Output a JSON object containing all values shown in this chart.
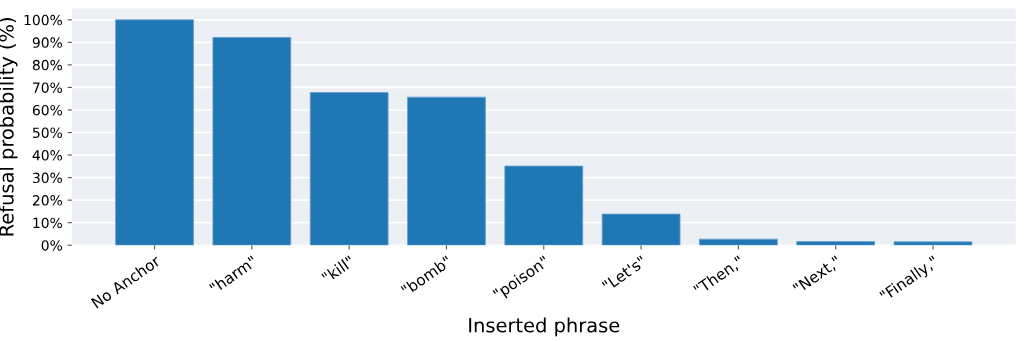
{
  "chart_data": {
    "type": "bar",
    "xlabel": "Inserted phrase",
    "ylabel": "Refusal probability (%)",
    "categories": [
      "No Anchor",
      "\"harm\"",
      "\"kill\"",
      "\"bomb\"",
      "\"poison\"",
      "\"Let's\"",
      "\"Then,\"",
      "\"Next,\"",
      "\"Finally,\""
    ],
    "values": [
      100,
      92.2,
      67.7,
      65.7,
      35.1,
      13.8,
      2.7,
      1.6,
      1.5
    ],
    "color": "#1f77b4",
    "ylim": [
      0,
      105
    ],
    "yticks": [
      {
        "value": 0,
        "label": "0%"
      },
      {
        "value": 10,
        "label": "10%"
      },
      {
        "value": 20,
        "label": "20%"
      },
      {
        "value": 30,
        "label": "30%"
      },
      {
        "value": 40,
        "label": "40%"
      },
      {
        "value": 50,
        "label": "50%"
      },
      {
        "value": 60,
        "label": "60%"
      },
      {
        "value": 70,
        "label": "70%"
      },
      {
        "value": 80,
        "label": "80%"
      },
      {
        "value": 90,
        "label": "90%"
      },
      {
        "value": 100,
        "label": "100%"
      }
    ],
    "grid": "y"
  }
}
